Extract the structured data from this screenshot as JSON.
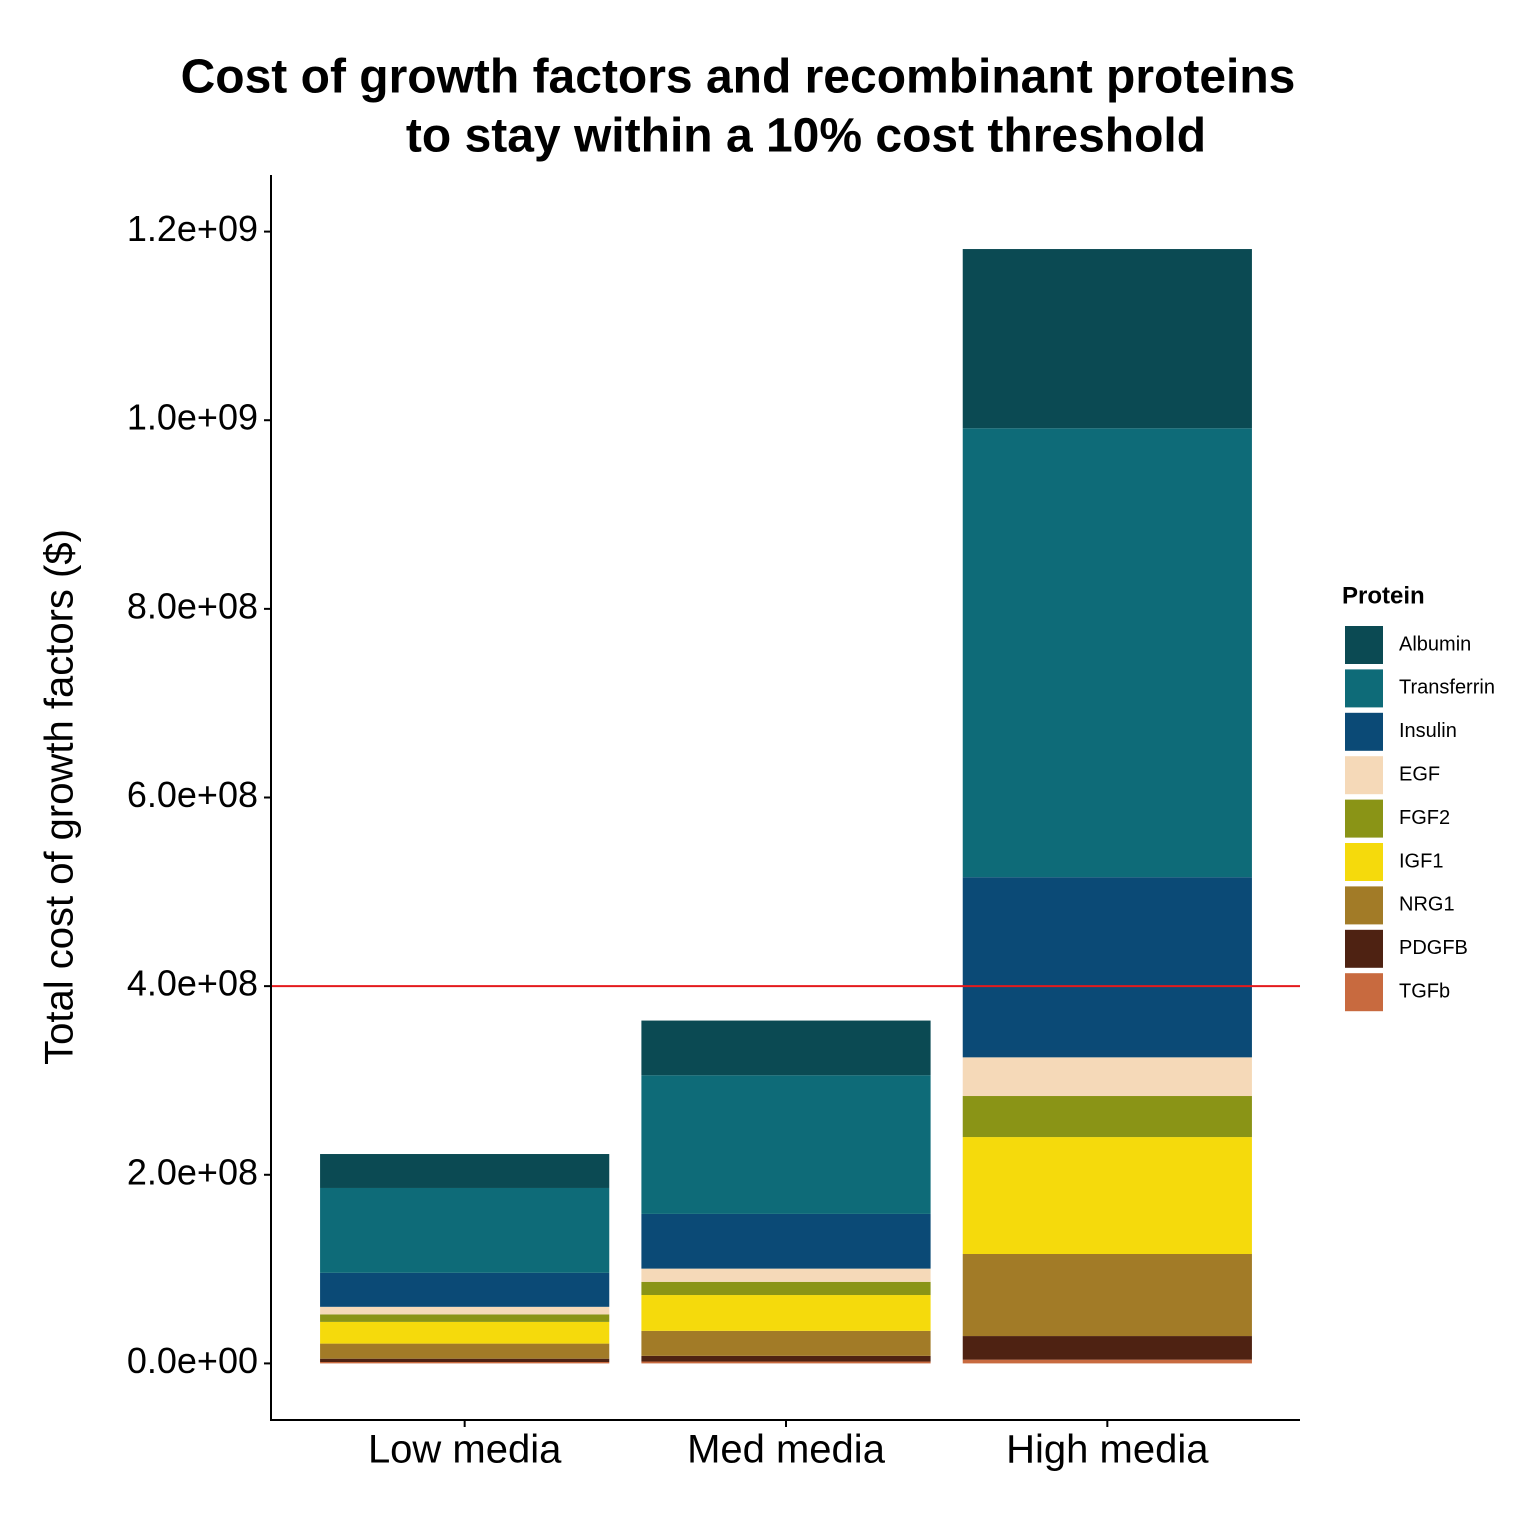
{
  "chart_data": {
    "type": "stacked-bar",
    "title": [
      "Cost of growth factors and recombinant proteins",
      "to stay within a 10% cost threshold"
    ],
    "y_label": "Total cost of growth factors ($)",
    "legend_title": "Protein",
    "categories": [
      "Low media",
      "Med media",
      "High media"
    ],
    "series": [
      {
        "name": "Albumin",
        "color": "#0b4a53",
        "values": [
          36000000,
          58000000,
          190000000
        ]
      },
      {
        "name": "Transferrin",
        "color": "#0e6b78",
        "values": [
          90000000,
          147000000,
          476000000
        ]
      },
      {
        "name": "Insulin",
        "color": "#0b4a76",
        "values": [
          36000000,
          58000000,
          191000000
        ]
      },
      {
        "name": "EGF",
        "color": "#f5d9b8",
        "values": [
          8000000,
          14000000,
          41000000
        ]
      },
      {
        "name": "FGF2",
        "color": "#8a9416",
        "values": [
          8000000,
          14000000,
          43500000
        ]
      },
      {
        "name": "IGF1",
        "color": "#f5da0c",
        "values": [
          23000000,
          38000000,
          124000000
        ]
      },
      {
        "name": "NRG1",
        "color": "#a27b27",
        "values": [
          16000000,
          26500000,
          87000000
        ]
      },
      {
        "name": "PDGFB",
        "color": "#4e2212",
        "values": [
          3500000,
          6000000,
          25000000
        ]
      },
      {
        "name": "TGFb",
        "color": "#c86a3f",
        "values": [
          1500000,
          2000000,
          4000000
        ]
      }
    ],
    "threshold": 400000000,
    "threshold_color": "#e41a1c",
    "ylim": [
      -60000000,
      1260000000
    ],
    "yticks": [
      {
        "value": 0,
        "label": "0.0e+00"
      },
      {
        "value": 200000000,
        "label": "2.0e+08"
      },
      {
        "value": 400000000,
        "label": "4.0e+08"
      },
      {
        "value": 600000000,
        "label": "6.0e+08"
      },
      {
        "value": 800000000,
        "label": "8.0e+08"
      },
      {
        "value": 1000000000,
        "label": "1.0e+09"
      },
      {
        "value": 1200000000,
        "label": "1.2e+09"
      }
    ],
    "grid": false,
    "legend": "right"
  }
}
